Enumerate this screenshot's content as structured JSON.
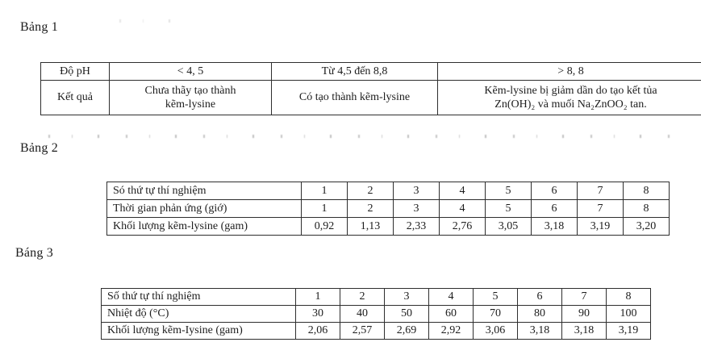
{
  "page": {
    "background": "#ffffff",
    "text_color": "#1d1d1d",
    "border_color": "#2e2e2e"
  },
  "tables": [
    {
      "label": "Bảng 1",
      "rows": [
        [
          "Độ pH",
          "< 4, 5",
          "Từ 4,5 đến 8,8",
          "> 8, 8"
        ],
        [
          "Kết quả",
          "Chưa thãy tạo thành\nkẽm-lysine",
          "Có tạo thành kẽm-lysine",
          "Kẽm-lysine bị giảm dần do tạo kết tủa\nZn(OH)₂ và muối Na₂ZnOO₂ tan."
        ]
      ]
    },
    {
      "label": "Bảng 2",
      "rows": [
        [
          "Só thứ tự thí nghiệm",
          "1",
          "2",
          "3",
          "4",
          "5",
          "6",
          "7",
          "8"
        ],
        [
          "Thời gian phản ứng (giớ)",
          "1",
          "2",
          "3",
          "4",
          "5",
          "6",
          "7",
          "8"
        ],
        [
          "Khối lượng kẽm-lysine (gam)",
          "0,92",
          "1,13",
          "2,33",
          "2,76",
          "3,05",
          "3,18",
          "3,19",
          "3,20"
        ]
      ]
    },
    {
      "label": "Báng 3",
      "rows": [
        [
          "Số thứ tự thí nghiệm",
          "1",
          "2",
          "3",
          "4",
          "5",
          "6",
          "7",
          "8"
        ],
        [
          "Nhiệt độ (°C)",
          "30",
          "40",
          "50",
          "60",
          "70",
          "80",
          "90",
          "100"
        ],
        [
          "Khối lượng kẽm-Iysine (gam)",
          "2,06",
          "2,57",
          "2,69",
          "2,92",
          "3,06",
          "3,18",
          "3,18",
          "3,19"
        ]
      ]
    }
  ]
}
